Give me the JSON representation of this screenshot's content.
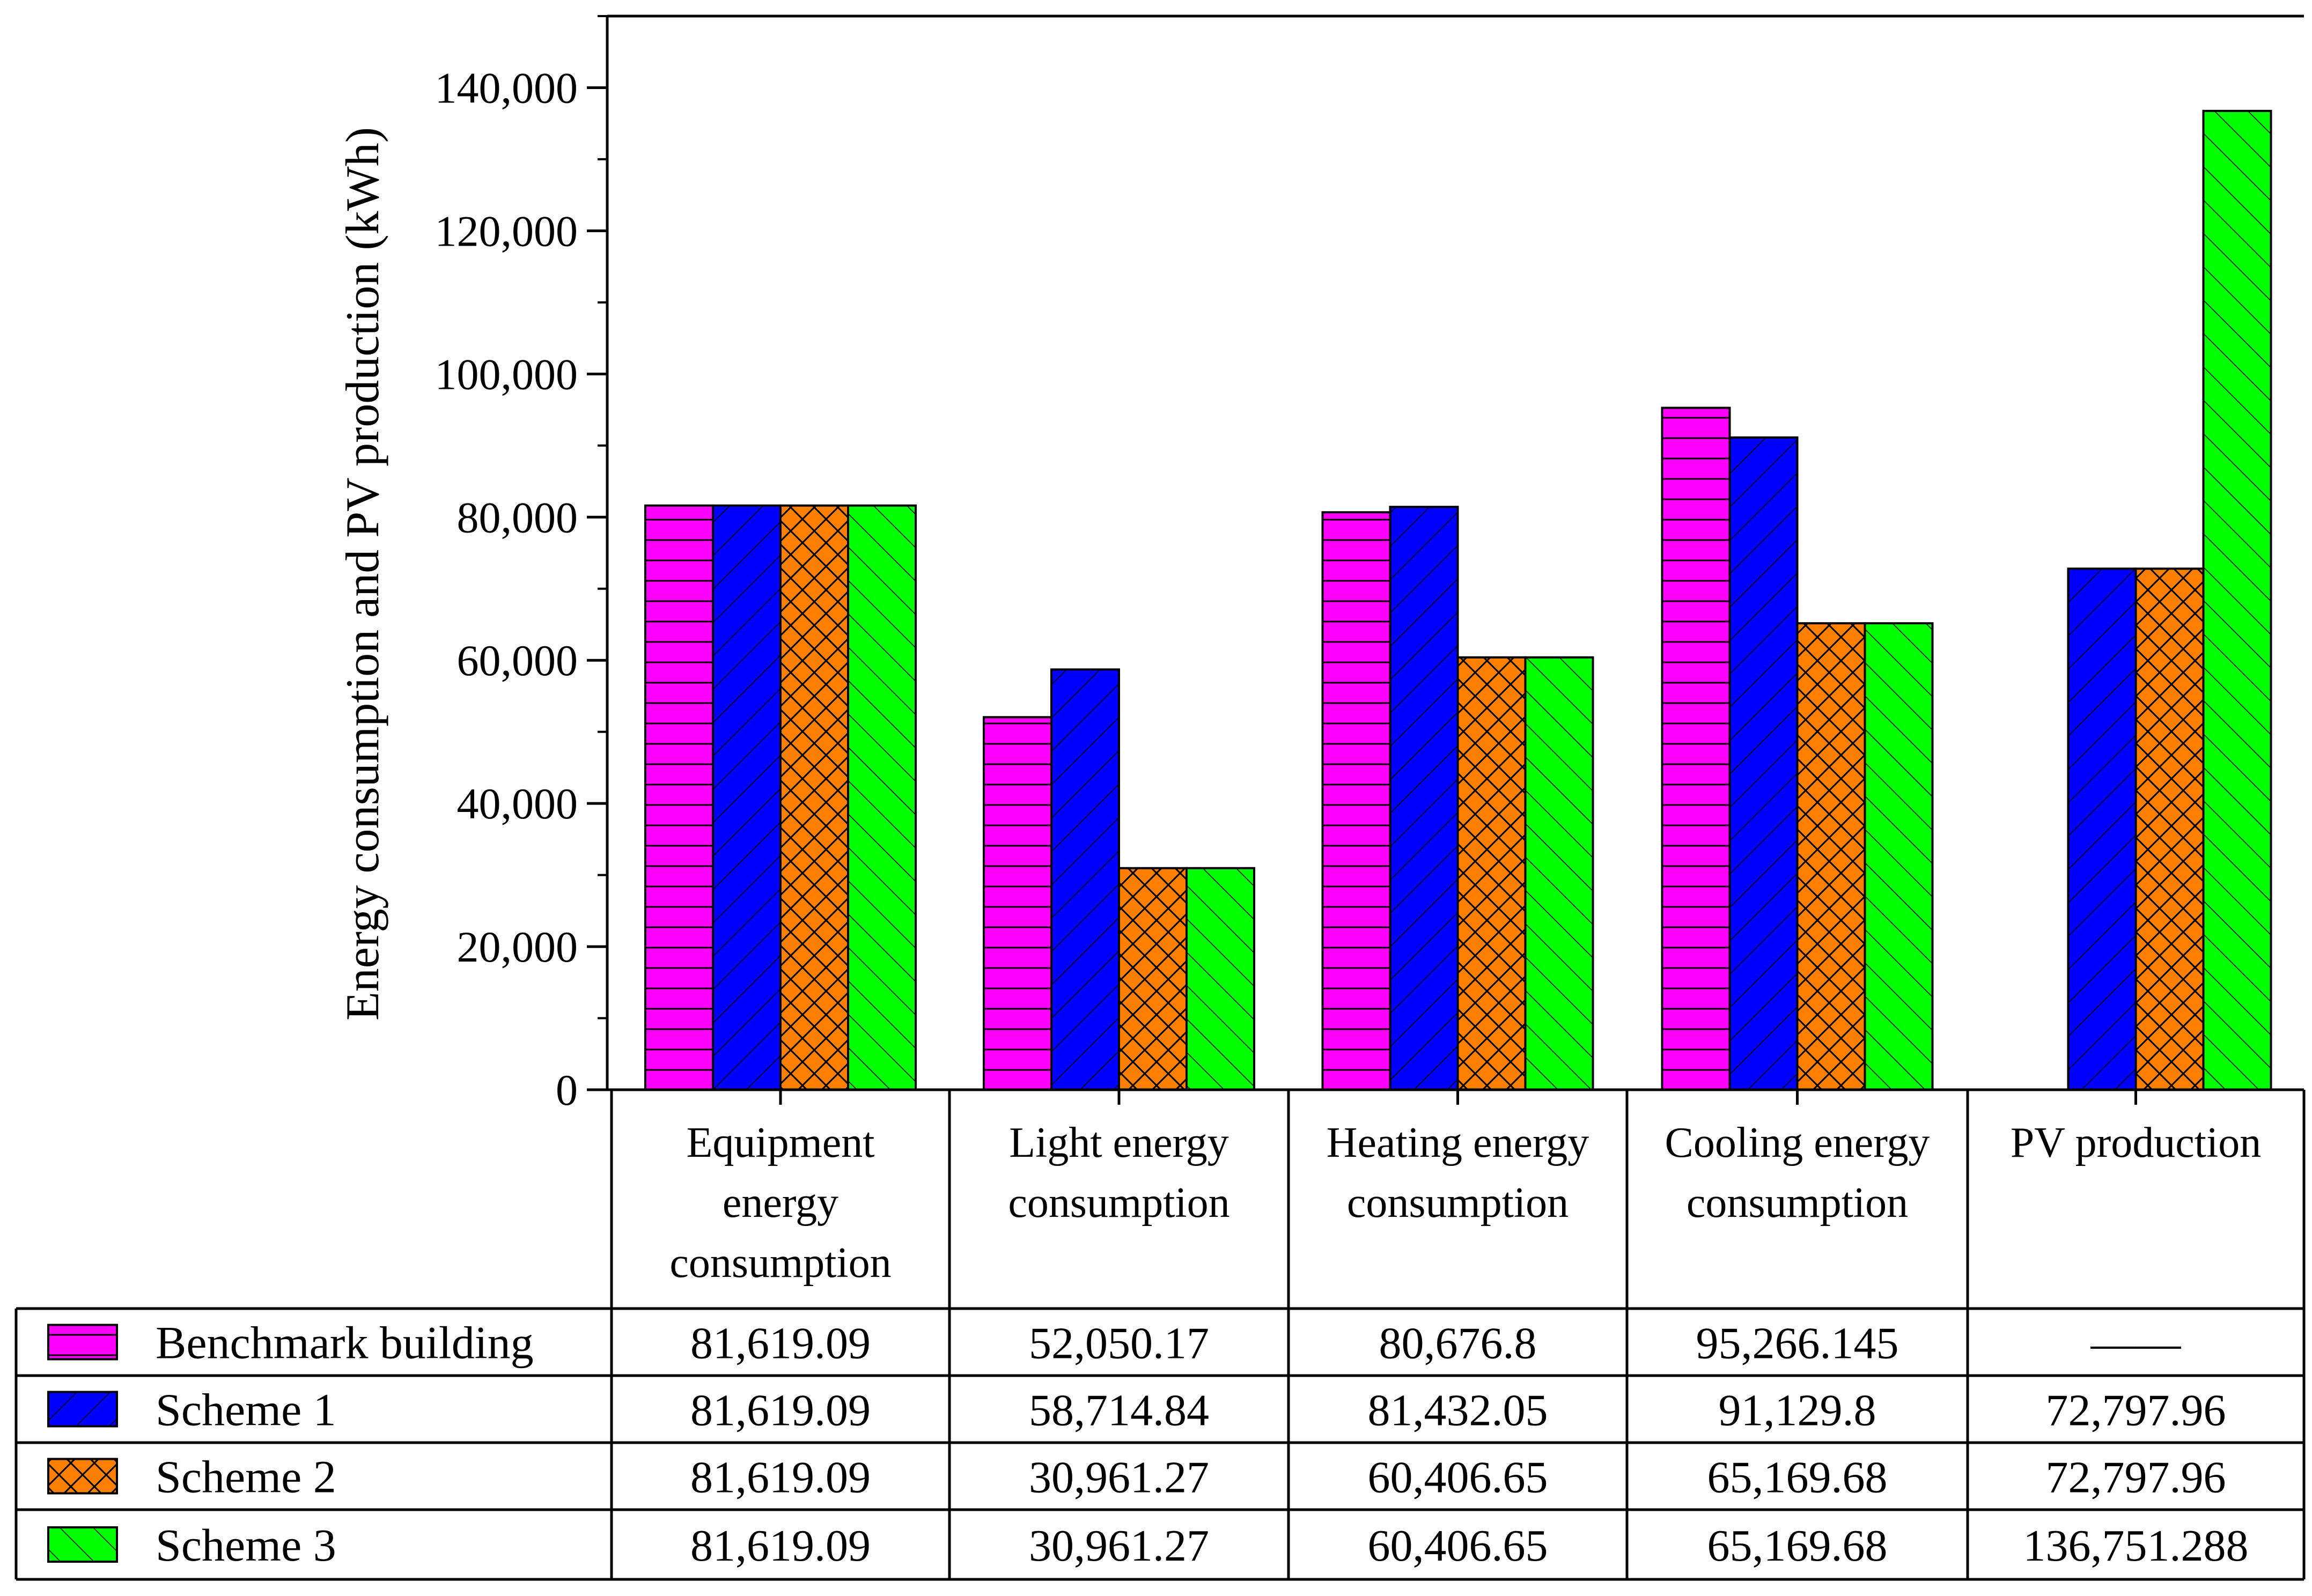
{
  "chart_data": {
    "type": "bar",
    "title": "",
    "xlabel": "",
    "ylabel": "Energy consumption and PV production (kWh)",
    "ylim": [
      0,
      150000
    ],
    "yticks": [
      0,
      20000,
      40000,
      60000,
      80000,
      100000,
      120000,
      140000
    ],
    "ytick_labels": [
      "0",
      "20,000",
      "40,000",
      "60,000",
      "80,000",
      "100,000",
      "120,000",
      "140,000"
    ],
    "grid": false,
    "categories": [
      [
        "Equipment",
        "energy",
        "consumption"
      ],
      [
        "Light energy",
        "consumption"
      ],
      [
        "Heating energy",
        "consumption"
      ],
      [
        "Cooling energy",
        "consumption"
      ],
      [
        "PV production"
      ]
    ],
    "series": [
      {
        "name": "Benchmark building",
        "color": "#FF00FF",
        "pattern": "horizontal",
        "values": [
          81619.09,
          52050.17,
          80676.8,
          95266.145,
          null
        ],
        "labels": [
          "81,619.09",
          "52,050.17",
          "80,676.8",
          "95,266.145",
          "——"
        ]
      },
      {
        "name": "Scheme 1",
        "color": "#0000FF",
        "pattern": "diag-up",
        "values": [
          81619.09,
          58714.84,
          81432.05,
          91129.8,
          72797.96
        ],
        "labels": [
          "81,619.09",
          "58,714.84",
          "81,432.05",
          "91,129.8",
          "72,797.96"
        ]
      },
      {
        "name": "Scheme 2",
        "color": "#FF8000",
        "pattern": "crosshatch",
        "values": [
          81619.09,
          30961.27,
          60406.65,
          65169.68,
          72797.96
        ],
        "labels": [
          "81,619.09",
          "30,961.27",
          "60,406.65",
          "65,169.68",
          "72,797.96"
        ]
      },
      {
        "name": "Scheme 3",
        "color": "#00FF00",
        "pattern": "diag-down",
        "values": [
          81619.09,
          30961.27,
          60406.65,
          65169.68,
          136751.288
        ],
        "labels": [
          "81,619.09",
          "30,961.27",
          "60,406.65",
          "65,169.68",
          "136,751.288"
        ]
      }
    ]
  }
}
